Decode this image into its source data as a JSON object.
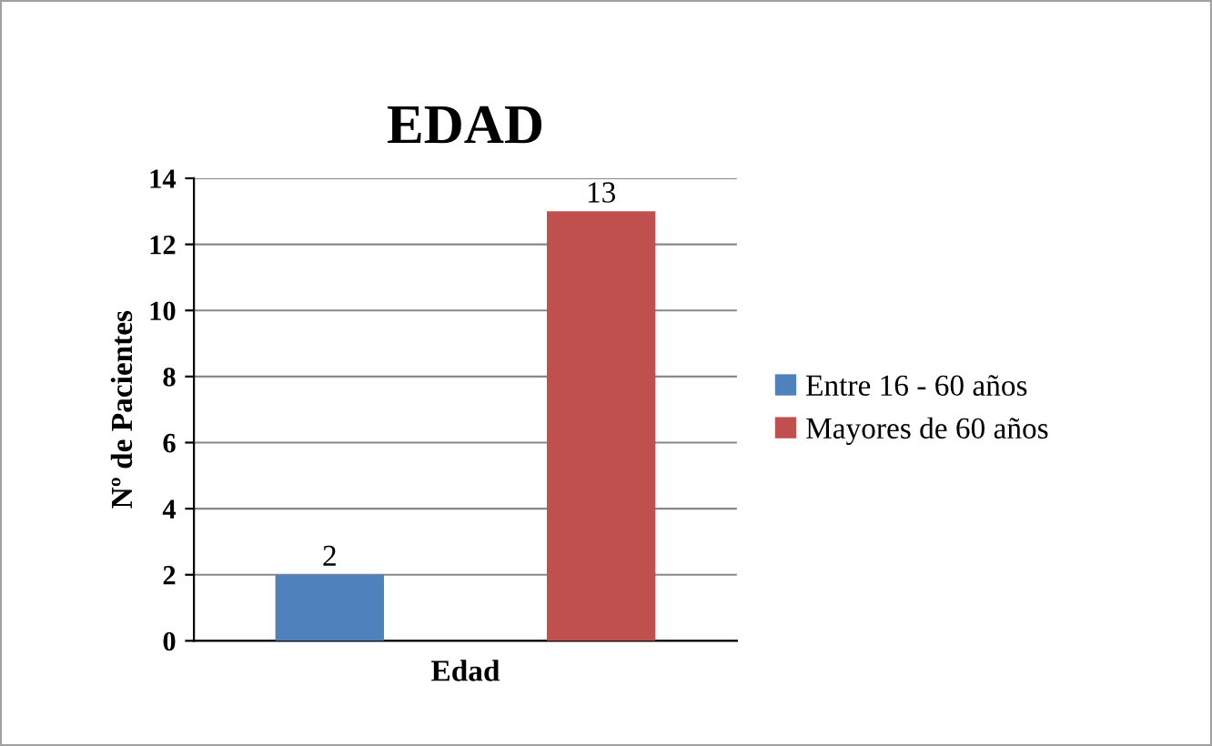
{
  "chart_data": {
    "type": "bar",
    "title": "EDAD",
    "xlabel": "Edad",
    "ylabel": "Nº de Pacientes",
    "categories": [
      null,
      null
    ],
    "series": [
      {
        "name": "Entre 16 - 60 años",
        "color": "#4f81bd",
        "values": [
          2,
          null
        ]
      },
      {
        "name": "Mayores de 60 años",
        "color": "#c0504d",
        "values": [
          null,
          13
        ]
      }
    ],
    "ylim": [
      0,
      14
    ],
    "yticks": [
      0,
      2,
      4,
      6,
      8,
      10,
      12,
      14
    ],
    "grid": "y",
    "legend": "right",
    "data_labels": true
  }
}
